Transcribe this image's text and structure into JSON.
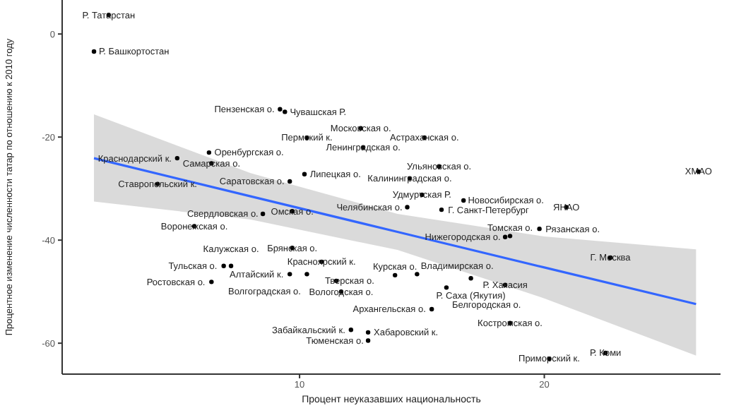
{
  "chart_data": {
    "type": "scatter",
    "xlabel": "Процент неуказавших национальность",
    "ylabel": "Процентное изменение численности татар по отношению к 2010 году",
    "xlim": [
      0.3,
      27.2
    ],
    "ylim": [
      -66,
      6.6
    ],
    "xticks": [
      10,
      20
    ],
    "yticks": [
      -60,
      -40,
      -20,
      0
    ],
    "grid": false,
    "legend": false,
    "series": [
      {
        "marker": "circle",
        "color": "#000000",
        "x": [
          2.2,
          1.6,
          9.2,
          9.4,
          12.5,
          10.3,
          12.6,
          15.1,
          15.7,
          26.3,
          6.3,
          5.0,
          6.4,
          10.2,
          9.6,
          4.2,
          14.5,
          15.0,
          16.7,
          14.4,
          15.8,
          20.9,
          8.5,
          9.7,
          5.7,
          19.8,
          18.6,
          18.4,
          9.7,
          22.7,
          10.9,
          6.9,
          7.2,
          9.6,
          10.3,
          11.5,
          13.9,
          14.8,
          6.4,
          17.0,
          18.4,
          16.0,
          11.7,
          15.4,
          18.6,
          12.1,
          12.8,
          12.8,
          20.2,
          22.5
        ],
        "values": [
          3.7,
          -3.4,
          -14.6,
          -15.1,
          -18.3,
          -20.1,
          -22,
          -20.1,
          -25.7,
          -26.7,
          -23,
          -24.1,
          -25.1,
          -27.2,
          -28.6,
          -29.1,
          -28,
          -31.2,
          -32.3,
          -33.6,
          -34.1,
          -33.6,
          -34.9,
          -34.4,
          -37.3,
          -37.8,
          -39.2,
          -39.4,
          -41.5,
          -43.4,
          -44.2,
          -45,
          -45,
          -46.6,
          -46.6,
          -47.9,
          -46.8,
          -46.6,
          -48.1,
          -47.4,
          -48.7,
          -49.2,
          -50,
          -53.4,
          -56.1,
          -57.4,
          -57.9,
          -59.5,
          -63,
          -61.9
        ],
        "value_labels": [
          "Р. Татарстан",
          "Р. Башкортостан",
          "Пензенская о.",
          "Чувашская Р.",
          "Московская о.",
          "Пермский к.",
          "Ленинградская о.",
          "Астраханская о.",
          "Ульяновская о.",
          "ХМАО",
          "Оренбургская о.",
          "Краснодарский к.",
          "Самарская о.",
          "Липецкая о.",
          "Саратовская о.",
          "Ставропольский к.",
          "Калининградская о.",
          "Удмуртская Р.",
          "Новосибирская о.",
          "Челябинская о.",
          "Г. Санкт-Петербург",
          "ЯНАО",
          "Свердловская о.",
          "Омская о.",
          "Воронежская о.",
          "Рязанская о.",
          "Томская о.",
          "Нижегородская о.",
          "Брянская о.",
          "Г. Москва",
          "Красноярский к.",
          "Тульская о.",
          "Калужская о.",
          "Алтайский к.",
          "Волгоградская о.",
          "Тверская о.",
          "Курская о.",
          "Владимирская о.",
          "Ростовская о.",
          "Р. Саха (Якутия)",
          "Р. Хакасия",
          "Белгородская о.",
          "Вологодская о.",
          "Архангельская о.",
          "Костромская о.",
          "Забайкальский к.",
          "Хабаровский к.",
          "Тюменская о.",
          "Приморский к.",
          "Р. Коми"
        ]
      },
      {
        "type": "line",
        "color": "#3366ff",
        "x": [
          1.6,
          8,
          14,
          20,
          26.2
        ],
        "values": [
          -24.1,
          -31.5,
          -38.4,
          -45.3,
          -52.4
        ],
        "lower": [
          -32.5,
          -36,
          -41.9,
          -51.3,
          -62.4
        ],
        "upper": [
          -15.6,
          -27,
          -34.9,
          -39.3,
          -41.8
        ]
      }
    ]
  }
}
